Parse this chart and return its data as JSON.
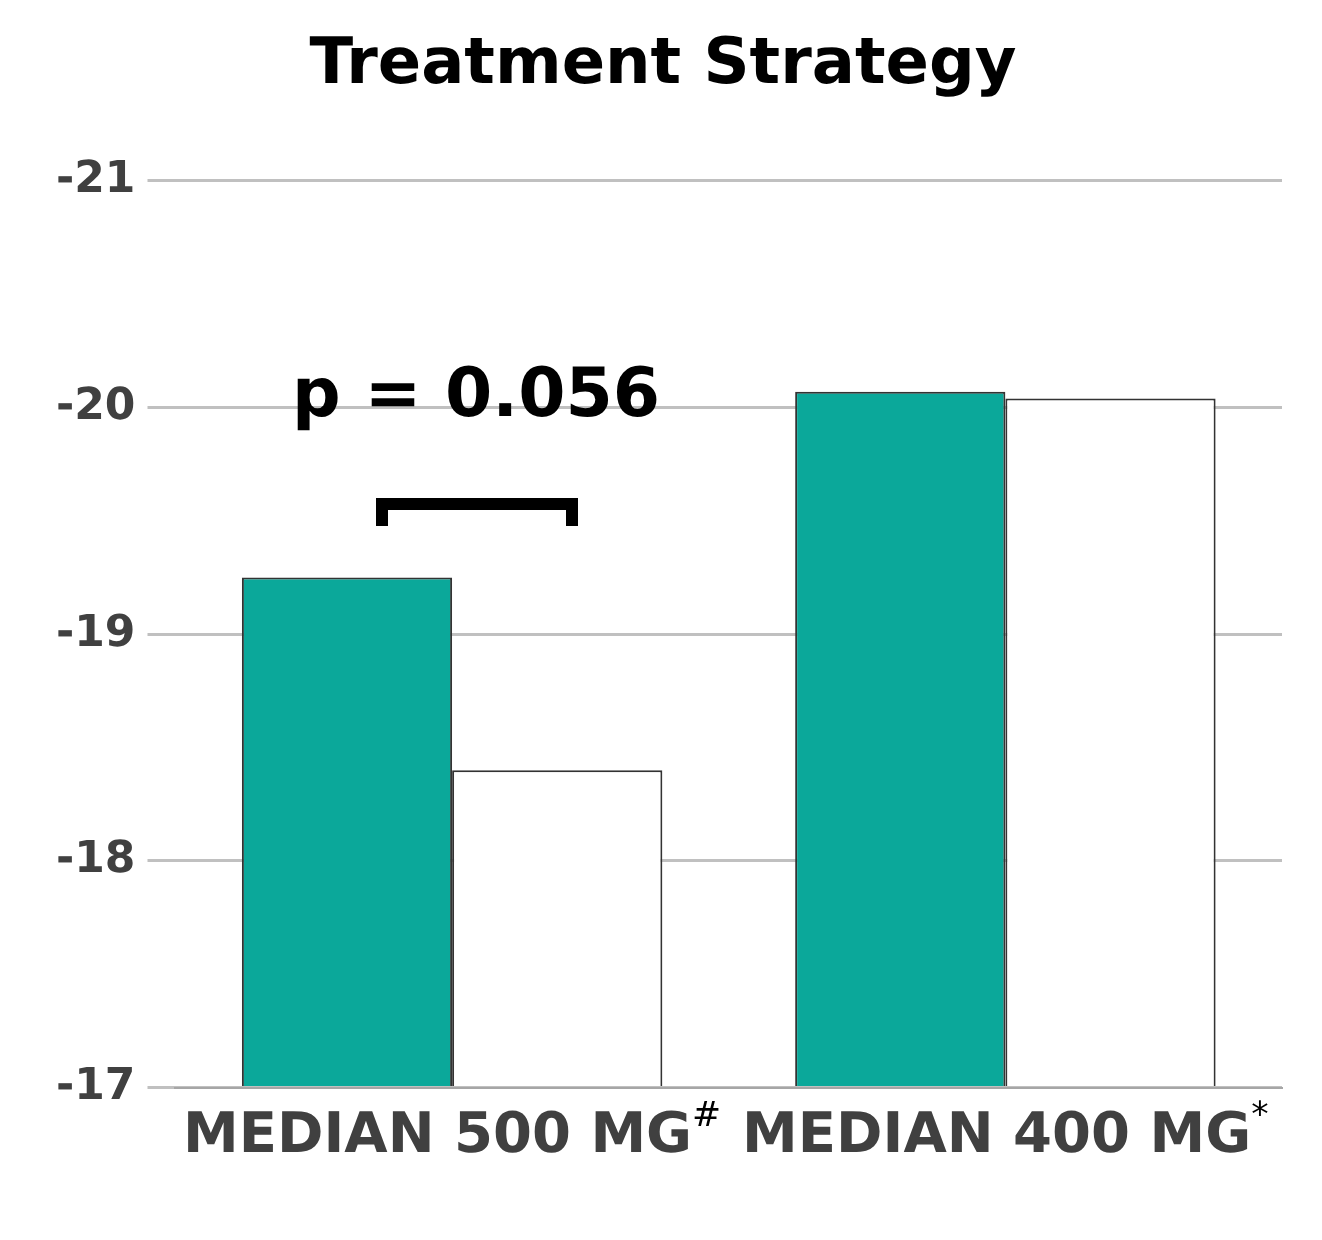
{
  "chart_data": {
    "type": "bar",
    "title": "Treatment Strategy",
    "categories": [
      "MEDIAN 500 MG$^{#}$",
      "MEDIAN 400 MG$^{*}$"
    ],
    "series": [
      {
        "color": "#0ba89a",
        "values": [
          -19.25,
          -20.07
        ]
      },
      {
        "color": "#ffffff",
        "values": [
          -18.4,
          -20.04
        ]
      }
    ],
    "ylim": [
      -17,
      -21
    ],
    "yticks": [
      -21,
      -20,
      -19,
      -18,
      -17
    ],
    "grid": "y",
    "annotations": [
      "p = 0.056"
    ]
  }
}
